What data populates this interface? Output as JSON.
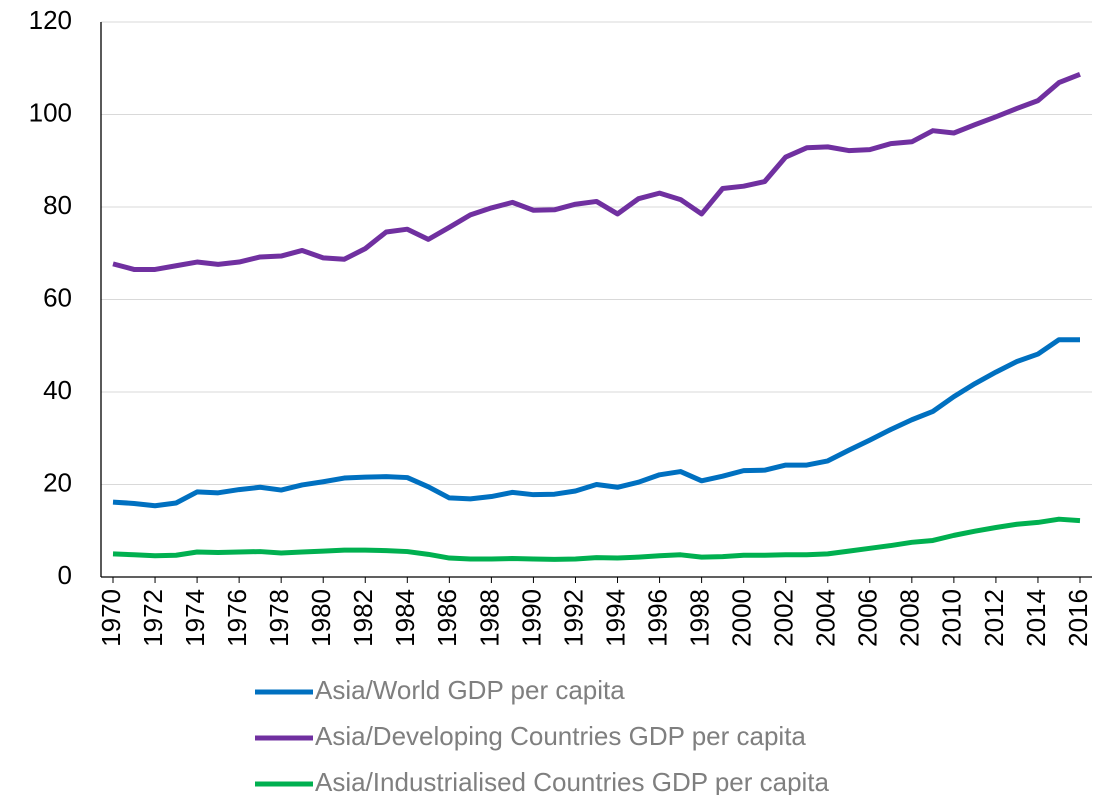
{
  "chart_data": {
    "type": "line",
    "x": [
      1970,
      1971,
      1972,
      1973,
      1974,
      1975,
      1976,
      1977,
      1978,
      1979,
      1980,
      1981,
      1982,
      1983,
      1984,
      1985,
      1986,
      1987,
      1988,
      1989,
      1990,
      1991,
      1992,
      1993,
      1994,
      1995,
      1996,
      1997,
      1998,
      1999,
      2000,
      2001,
      2002,
      2003,
      2004,
      2005,
      2006,
      2007,
      2008,
      2009,
      2010,
      2011,
      2012,
      2013,
      2014,
      2015,
      2016
    ],
    "xlim": [
      1970,
      2016
    ],
    "xticks": [
      1970,
      1972,
      1974,
      1976,
      1978,
      1980,
      1982,
      1984,
      1986,
      1988,
      1990,
      1992,
      1994,
      1996,
      1998,
      2000,
      2002,
      2004,
      2006,
      2008,
      2010,
      2012,
      2014,
      2016
    ],
    "ylim": [
      0,
      120
    ],
    "yticks": [
      0,
      20,
      40,
      60,
      80,
      100,
      120
    ],
    "grid": true,
    "legend": "bottom",
    "series": [
      {
        "name": "Asia/World GDP per capita",
        "color": "#0070c0",
        "values": [
          16.2,
          15.9,
          15.4,
          16.0,
          18.4,
          18.2,
          18.9,
          19.4,
          18.8,
          19.9,
          20.6,
          21.4,
          21.6,
          21.7,
          21.5,
          19.5,
          17.1,
          16.9,
          17.4,
          18.3,
          17.8,
          17.9,
          18.6,
          20.0,
          19.4,
          20.5,
          22.1,
          22.8,
          20.8,
          21.8,
          23.0,
          23.1,
          24.2,
          24.2,
          25.1,
          27.4,
          29.6,
          31.9,
          34.0,
          35.8,
          39.0,
          41.8,
          44.3,
          46.6,
          48.2,
          51.3,
          51.3
        ]
      },
      {
        "name": "Asia/Developing Countries GDP per capita",
        "color": "#7030a0",
        "values": [
          67.7,
          66.5,
          66.5,
          67.3,
          68.1,
          67.6,
          68.1,
          69.2,
          69.4,
          70.6,
          69.0,
          68.7,
          71.0,
          74.6,
          75.2,
          73.0,
          75.6,
          78.3,
          79.8,
          81.0,
          79.3,
          79.4,
          80.6,
          81.2,
          78.5,
          81.8,
          83.0,
          81.6,
          78.5,
          84.0,
          84.5,
          85.5,
          90.8,
          92.8,
          93.0,
          92.2,
          92.4,
          93.7,
          94.1,
          96.5,
          96.0,
          97.8,
          99.5,
          101.3,
          103.0,
          106.9,
          108.7
        ]
      },
      {
        "name": "Asia/Industrialised Countries GDP per capita",
        "color": "#00b050",
        "values": [
          5.0,
          4.8,
          4.6,
          4.7,
          5.4,
          5.3,
          5.4,
          5.5,
          5.2,
          5.4,
          5.6,
          5.8,
          5.8,
          5.7,
          5.5,
          4.9,
          4.1,
          3.9,
          3.9,
          4.0,
          3.9,
          3.8,
          3.9,
          4.2,
          4.1,
          4.3,
          4.6,
          4.8,
          4.3,
          4.4,
          4.7,
          4.7,
          4.8,
          4.8,
          5.0,
          5.6,
          6.2,
          6.8,
          7.5,
          7.9,
          9.0,
          9.9,
          10.7,
          11.4,
          11.8,
          12.5,
          12.2
        ]
      }
    ]
  }
}
